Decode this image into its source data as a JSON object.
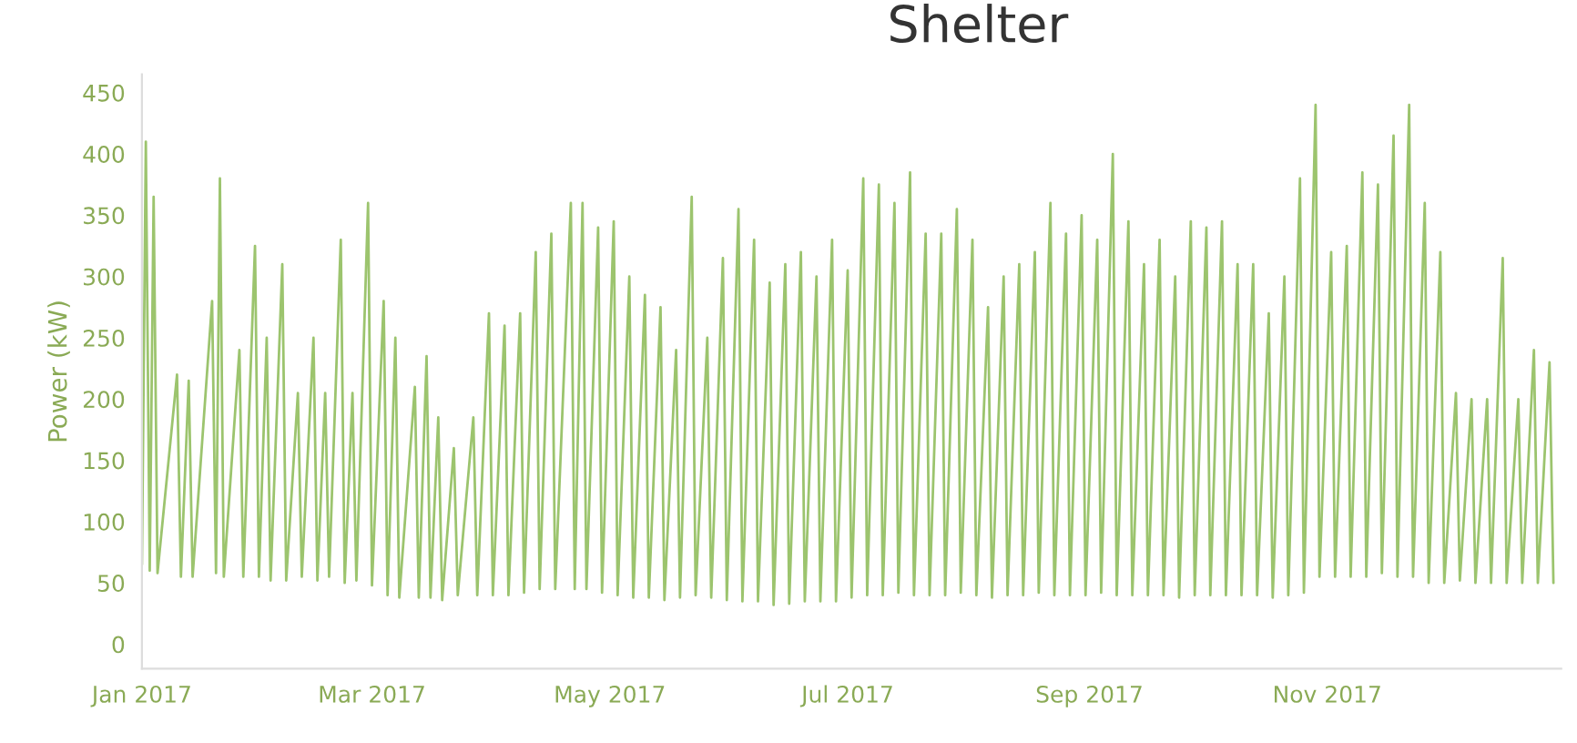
{
  "chart_data": {
    "type": "line",
    "title": "Shelter",
    "ylabel": "Power (kW)",
    "xlim": [
      "2017-01-01",
      "2017-12-31"
    ],
    "ylim": [
      -20,
      465
    ],
    "xticks": [
      {
        "value": "2017-01-01",
        "label": "Jan 2017"
      },
      {
        "value": "2017-03-01",
        "label": "Mar 2017"
      },
      {
        "value": "2017-05-01",
        "label": "May 2017"
      },
      {
        "value": "2017-07-01",
        "label": "Jul 2017"
      },
      {
        "value": "2017-09-01",
        "label": "Sep 2017"
      },
      {
        "value": "2017-11-01",
        "label": "Nov 2017"
      }
    ],
    "yticks": [
      0,
      50,
      100,
      150,
      200,
      250,
      300,
      350,
      400,
      450
    ],
    "grid": false,
    "legend": false,
    "marker": "none",
    "line_style": "solid",
    "series": [
      {
        "color": "#9cc46e",
        "x": [
          "2017-01-01",
          "2017-01-02",
          "2017-01-03",
          "2017-01-04",
          "2017-01-05",
          "2017-01-10",
          "2017-01-11",
          "2017-01-13",
          "2017-01-14",
          "2017-01-19",
          "2017-01-20",
          "2017-01-21",
          "2017-01-22",
          "2017-01-26",
          "2017-01-27",
          "2017-01-30",
          "2017-01-31",
          "2017-02-02",
          "2017-02-03",
          "2017-02-06",
          "2017-02-07",
          "2017-02-10",
          "2017-02-11",
          "2017-02-14",
          "2017-02-15",
          "2017-02-17",
          "2017-02-18",
          "2017-02-21",
          "2017-02-22",
          "2017-02-24",
          "2017-02-25",
          "2017-02-28",
          "2017-03-01",
          "2017-03-04",
          "2017-03-05",
          "2017-03-07",
          "2017-03-08",
          "2017-03-12",
          "2017-03-13",
          "2017-03-15",
          "2017-03-16",
          "2017-03-18",
          "2017-03-19",
          "2017-03-22",
          "2017-03-23",
          "2017-03-27",
          "2017-03-28",
          "2017-03-31",
          "2017-04-01",
          "2017-04-04",
          "2017-04-05",
          "2017-04-08",
          "2017-04-09",
          "2017-04-12",
          "2017-04-13",
          "2017-04-16",
          "2017-04-17",
          "2017-04-21",
          "2017-04-22",
          "2017-04-24",
          "2017-04-25",
          "2017-04-28",
          "2017-04-29",
          "2017-05-02",
          "2017-05-03",
          "2017-05-06",
          "2017-05-07",
          "2017-05-10",
          "2017-05-11",
          "2017-05-14",
          "2017-05-15",
          "2017-05-18",
          "2017-05-19",
          "2017-05-22",
          "2017-05-23",
          "2017-05-26",
          "2017-05-27",
          "2017-05-30",
          "2017-05-31",
          "2017-06-03",
          "2017-06-04",
          "2017-06-07",
          "2017-06-08",
          "2017-06-11",
          "2017-06-12",
          "2017-06-15",
          "2017-06-16",
          "2017-06-19",
          "2017-06-20",
          "2017-06-23",
          "2017-06-24",
          "2017-06-27",
          "2017-06-28",
          "2017-07-01",
          "2017-07-02",
          "2017-07-05",
          "2017-07-06",
          "2017-07-09",
          "2017-07-10",
          "2017-07-13",
          "2017-07-14",
          "2017-07-17",
          "2017-07-18",
          "2017-07-21",
          "2017-07-22",
          "2017-07-25",
          "2017-07-26",
          "2017-07-29",
          "2017-07-30",
          "2017-08-02",
          "2017-08-03",
          "2017-08-06",
          "2017-08-07",
          "2017-08-10",
          "2017-08-11",
          "2017-08-14",
          "2017-08-15",
          "2017-08-18",
          "2017-08-19",
          "2017-08-22",
          "2017-08-23",
          "2017-08-26",
          "2017-08-27",
          "2017-08-30",
          "2017-08-31",
          "2017-09-03",
          "2017-09-04",
          "2017-09-07",
          "2017-09-08",
          "2017-09-11",
          "2017-09-12",
          "2017-09-15",
          "2017-09-16",
          "2017-09-19",
          "2017-09-20",
          "2017-09-23",
          "2017-09-24",
          "2017-09-27",
          "2017-09-28",
          "2017-10-01",
          "2017-10-02",
          "2017-10-05",
          "2017-10-06",
          "2017-10-09",
          "2017-10-10",
          "2017-10-13",
          "2017-10-14",
          "2017-10-17",
          "2017-10-18",
          "2017-10-21",
          "2017-10-22",
          "2017-10-25",
          "2017-10-26",
          "2017-10-29",
          "2017-10-30",
          "2017-11-02",
          "2017-11-03",
          "2017-11-06",
          "2017-11-07",
          "2017-11-10",
          "2017-11-11",
          "2017-11-14",
          "2017-11-15",
          "2017-11-18",
          "2017-11-19",
          "2017-11-22",
          "2017-11-23",
          "2017-11-26",
          "2017-11-27",
          "2017-11-30",
          "2017-12-01",
          "2017-12-04",
          "2017-12-05",
          "2017-12-08",
          "2017-12-09",
          "2017-12-12",
          "2017-12-13",
          "2017-12-16",
          "2017-12-17",
          "2017-12-20",
          "2017-12-21",
          "2017-12-24",
          "2017-12-25",
          "2017-12-28",
          "2017-12-29"
        ],
        "values": [
          65,
          410,
          60,
          365,
          58,
          220,
          55,
          215,
          55,
          280,
          58,
          380,
          55,
          240,
          55,
          325,
          55,
          250,
          52,
          310,
          52,
          205,
          55,
          250,
          52,
          205,
          55,
          330,
          50,
          205,
          52,
          360,
          48,
          280,
          40,
          250,
          38,
          210,
          38,
          235,
          38,
          185,
          36,
          160,
          40,
          185,
          40,
          270,
          40,
          260,
          40,
          270,
          42,
          320,
          45,
          335,
          45,
          360,
          45,
          360,
          45,
          340,
          42,
          345,
          40,
          300,
          38,
          285,
          38,
          275,
          36,
          240,
          38,
          365,
          40,
          250,
          38,
          315,
          36,
          355,
          35,
          330,
          35,
          295,
          32,
          310,
          33,
          320,
          35,
          300,
          35,
          330,
          35,
          305,
          38,
          380,
          40,
          375,
          40,
          360,
          42,
          385,
          40,
          335,
          40,
          335,
          40,
          355,
          42,
          330,
          40,
          275,
          38,
          300,
          40,
          310,
          40,
          320,
          42,
          360,
          40,
          335,
          40,
          350,
          40,
          330,
          42,
          400,
          40,
          345,
          40,
          310,
          40,
          330,
          40,
          300,
          38,
          345,
          40,
          340,
          40,
          345,
          40,
          310,
          40,
          310,
          40,
          270,
          38,
          300,
          40,
          380,
          42,
          440,
          55,
          320,
          55,
          325,
          55,
          385,
          55,
          375,
          58,
          415,
          55,
          440,
          55,
          360,
          50,
          320,
          50,
          205,
          52,
          200,
          50,
          200,
          50,
          315,
          50,
          200,
          50,
          240,
          50,
          230,
          50
        ]
      }
    ]
  }
}
